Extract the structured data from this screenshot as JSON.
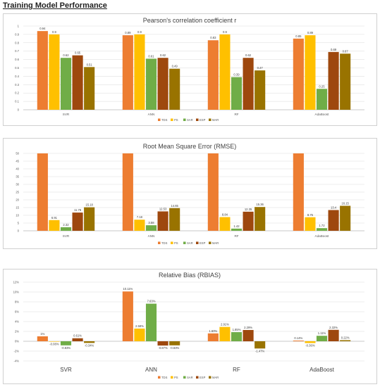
{
  "page_title": "Training Model Performance",
  "colors": {
    "TDS": "#ED7D31",
    "PS": "#FFC000",
    "SAR": "#70AD47",
    "ESP": "#9E480E",
    "MAR": "#997300"
  },
  "chart_data": [
    {
      "type": "bar",
      "title": "Pearson's correlation coefficient r",
      "categories": [
        "SVR",
        "ANN",
        "RF",
        "AdaBoost"
      ],
      "series": [
        {
          "name": "TDS",
          "values": [
            0.94,
            0.89,
            0.83,
            0.85
          ]
        },
        {
          "name": "PS",
          "values": [
            0.9,
            0.9,
            0.9,
            0.89
          ]
        },
        {
          "name": "SAR",
          "values": [
            0.62,
            0.61,
            0.39,
            0.25
          ]
        },
        {
          "name": "ESP",
          "values": [
            0.65,
            0.62,
            0.62,
            0.69
          ]
        },
        {
          "name": "MAR",
          "values": [
            0.51,
            0.49,
            0.47,
            0.67
          ]
        }
      ],
      "labels": [
        [
          "0.94",
          "0.89",
          "0.83",
          "0.85"
        ],
        [
          "0.9",
          "0.9",
          "0.9",
          "0.89"
        ],
        [
          "0.62",
          "0.61",
          "0.39",
          "0.25"
        ],
        [
          "0.65",
          "0.62",
          "0.62",
          "0.69"
        ],
        [
          "0.51",
          "0.49",
          "0.47",
          "0.67"
        ]
      ],
      "ylim": [
        0,
        1
      ],
      "yticks": [
        "0",
        "0.1",
        "0.2",
        "0.3",
        "0.4",
        "0.5",
        "0.6",
        "0.7",
        "0.8",
        "0.9",
        "1"
      ],
      "ytick_values": [
        0,
        0.1,
        0.2,
        0.3,
        0.4,
        0.5,
        0.6,
        0.7,
        0.8,
        0.9,
        1
      ],
      "legend_position": "bottom"
    },
    {
      "type": "bar",
      "title": "Root Mean Square Error (RMSE)",
      "categories": [
        "SVR",
        "ANN",
        "RF",
        "AdaBoost"
      ],
      "series": [
        {
          "name": "TDS",
          "values": [
            50,
            50,
            50,
            50
          ]
        },
        {
          "name": "PS",
          "values": [
            6.91,
            7.18,
            8.84,
            8.75
          ]
        },
        {
          "name": "SAR",
          "values": [
            2.32,
            3.58,
            1.42,
            1.72
          ]
        },
        {
          "name": "ESP",
          "values": [
            11.78,
            12.53,
            12.35,
            13.4
          ]
        },
        {
          "name": "MAR",
          "values": [
            15.18,
            14.65,
            15.36,
            16.15
          ]
        }
      ],
      "labels": [
        [
          "",
          "",
          "",
          ""
        ],
        [
          "6.91",
          "7.18",
          "8.84",
          "8.75"
        ],
        [
          "2.32",
          "3.58",
          "1.42",
          "1.72"
        ],
        [
          "11.78",
          "12.53",
          "12.35",
          "13.4"
        ],
        [
          "15.18",
          "14.65",
          "15.36",
          "16.15"
        ]
      ],
      "ylim": [
        0,
        50
      ],
      "yticks": [
        "0",
        "5",
        "10",
        "15",
        "20",
        "25",
        "30",
        "35",
        "40",
        "45",
        "50"
      ],
      "ytick_values": [
        0,
        5,
        10,
        15,
        20,
        25,
        30,
        35,
        40,
        45,
        50
      ],
      "legend_position": "bottom"
    },
    {
      "type": "bar",
      "title": "Relative Bias (RBIAS)",
      "categories": [
        "SVR",
        "ANN",
        "RF",
        "AdaBoost"
      ],
      "series": [
        {
          "name": "TDS",
          "values": [
            1.0,
            10.11,
            1.6,
            0.14
          ]
        },
        {
          "name": "PS",
          "values": [
            -0.08,
            2.58,
            2.91,
            -0.36
          ]
        },
        {
          "name": "SAR",
          "values": [
            -0.83,
            7.63,
            1.85,
            1.11
          ]
        },
        {
          "name": "ESP",
          "values": [
            0.61,
            -0.87,
            2.29,
            2.32
          ]
        },
        {
          "name": "MAR",
          "values": [
            -0.34,
            -0.83,
            -1.47,
            0.22
          ]
        }
      ],
      "labels": [
        [
          "1%",
          "10.11%",
          "1.60%",
          "0.14%"
        ],
        [
          "-0.08%",
          "2.58%",
          "2.91%",
          "-0.36%"
        ],
        [
          "-0.83%",
          "7.63%",
          "1.85%",
          "1.11%"
        ],
        [
          "0.61%",
          "-0.87%",
          "2.29%",
          "2.32%"
        ],
        [
          "-0.34%",
          "-0.83%",
          "-1.47%",
          "0.22%"
        ]
      ],
      "ylim": [
        -4,
        12
      ],
      "yticks": [
        "-4%",
        "-2%",
        "0%",
        "2%",
        "4%",
        "6%",
        "8%",
        "10%",
        "12%"
      ],
      "ytick_values": [
        -4,
        -2,
        0,
        2,
        4,
        6,
        8,
        10,
        12
      ],
      "legend_position": "bottom"
    }
  ]
}
